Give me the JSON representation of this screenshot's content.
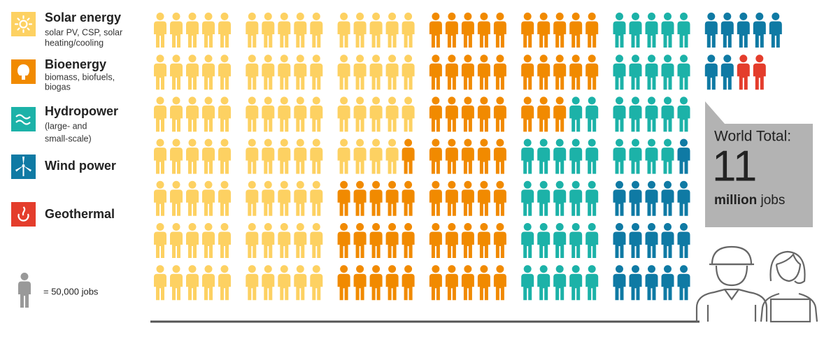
{
  "chart_data": {
    "type": "pictograph",
    "series": [
      {
        "name": "Solar energy",
        "description": [
          "solar PV, CSP, solar",
          "heating/cooling"
        ],
        "color": "#fdd162",
        "value": 89
      },
      {
        "name": "Bioenergy",
        "description": [
          "biomass, biofuels,",
          "biogas"
        ],
        "color": "#f18a00",
        "value": 64
      },
      {
        "name": "Hydropower",
        "description": [
          "(large- and",
          "small-scale)"
        ],
        "color": "#1cb2a8",
        "value": 41
      },
      {
        "name": "Wind power",
        "color": "#0f7aa4",
        "value": 23
      },
      {
        "name": "Geothermal",
        "color": "#e43d2c",
        "value": 2
      }
    ],
    "unit_label": "= 50,000 jobs",
    "callout": {
      "label": "World Total:",
      "number": 11,
      "unit_bold": "million",
      "unit_rest": "jobs"
    }
  }
}
